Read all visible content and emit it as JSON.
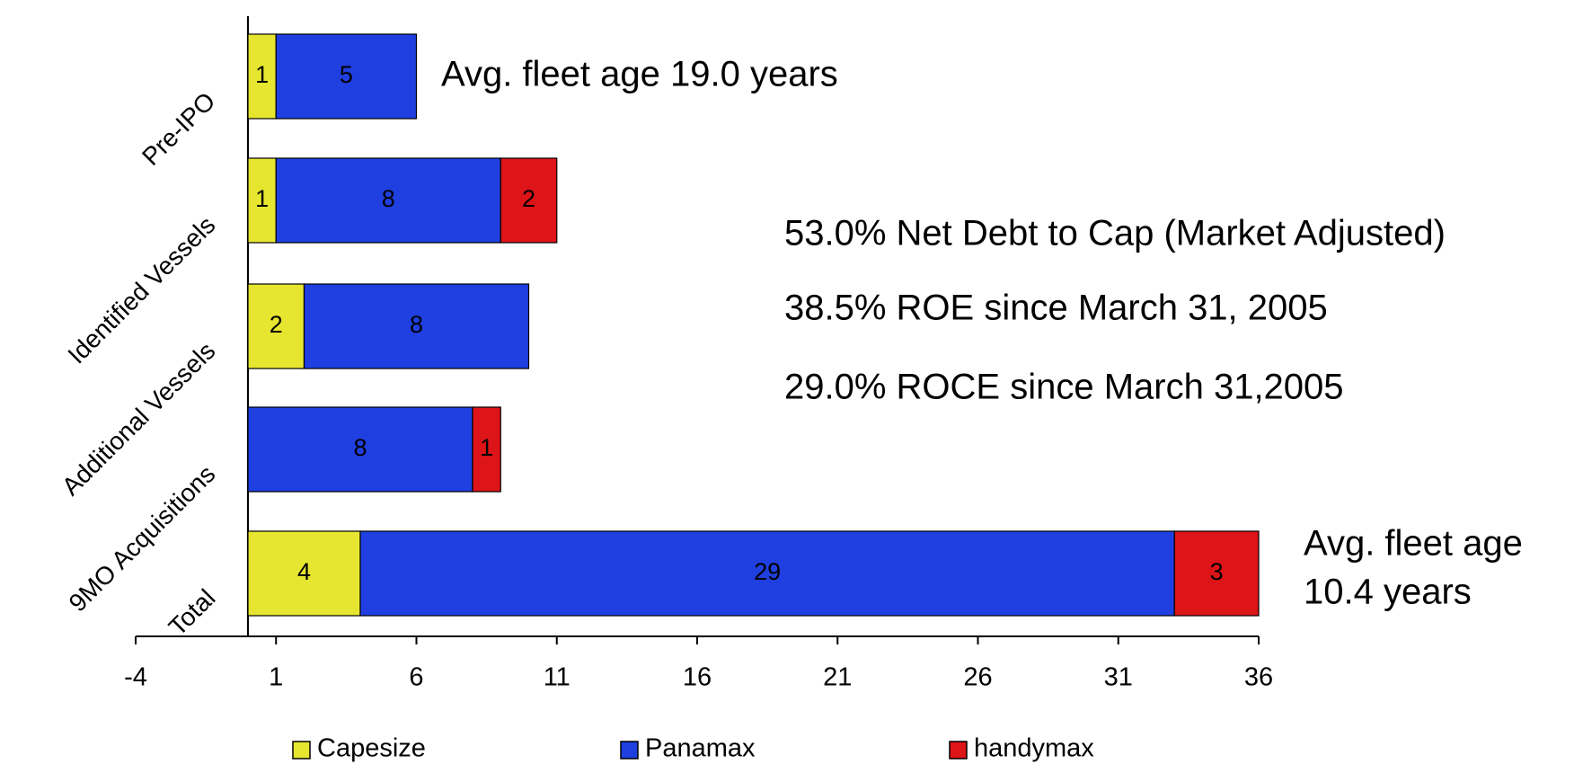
{
  "chart_data": {
    "type": "stacked-barh",
    "categories": [
      "Pre-IPO",
      "Identified Vessels",
      "Additional Vessels",
      "9MO Acquisitions",
      "Total"
    ],
    "series": [
      {
        "name": "Capesize",
        "color": "#e6e630",
        "values": [
          1,
          1,
          2,
          null,
          4
        ]
      },
      {
        "name": "Panamax",
        "color": "#1f3fe0",
        "values": [
          5,
          8,
          8,
          8,
          29
        ]
      },
      {
        "name": "handymax",
        "color": "#dd1418",
        "values": [
          null,
          2,
          null,
          1,
          3
        ]
      }
    ],
    "xlim": [
      -4,
      36
    ],
    "xticks": [
      -4,
      1,
      6,
      11,
      16,
      21,
      26,
      31,
      36
    ],
    "legend": "bottom",
    "annotations": [
      "Avg. fleet age 19.0 years",
      "53.0% Net Debt to Cap (Market Adjusted)",
      "38.5% ROE since March 31, 2005",
      "29.0% ROCE since March 31,2005",
      "Avg. fleet age",
      "10.4 years"
    ]
  }
}
